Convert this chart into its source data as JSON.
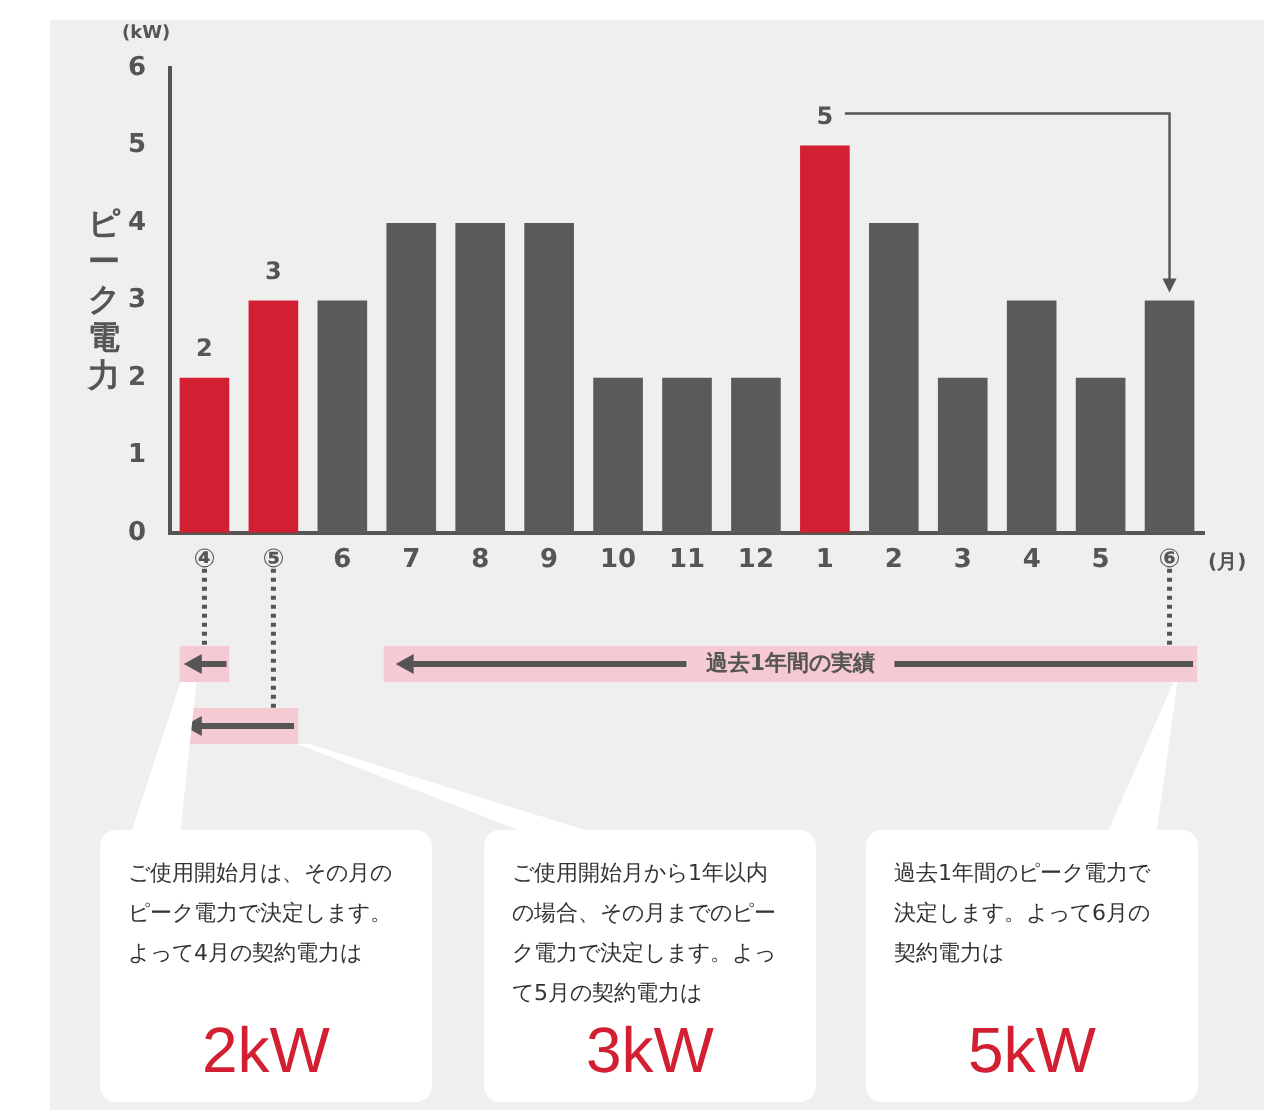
{
  "chart_data": {
    "type": "bar",
    "ylabel": "ピーク電力",
    "xlabel": "(月)",
    "categories": [
      "④",
      "⑤",
      "6",
      "7",
      "8",
      "9",
      "10",
      "11",
      "12",
      "1",
      "2",
      "3",
      "4",
      "5",
      "⑥"
    ],
    "values": [
      2,
      3,
      3,
      4,
      4,
      4,
      2,
      2,
      2,
      5,
      4,
      2,
      3,
      2,
      3
    ],
    "colors": [
      "#d21f32",
      "#d21f32",
      "#5a5a5a",
      "#5a5a5a",
      "#5a5a5a",
      "#5a5a5a",
      "#5a5a5a",
      "#5a5a5a",
      "#5a5a5a",
      "#d21f32",
      "#5a5a5a",
      "#5a5a5a",
      "#5a5a5a",
      "#5a5a5a",
      "#5a5a5a"
    ],
    "value_labels": [
      "2",
      "3",
      null,
      null,
      null,
      null,
      null,
      null,
      null,
      "5",
      null,
      null,
      null,
      null,
      null
    ],
    "ylim": [
      0,
      6
    ],
    "yticks": [
      0,
      1,
      2,
      3,
      4,
      5,
      6
    ],
    "grid": false,
    "legend": false,
    "annotations": [
      "(kW)",
      "過去1年間の実績",
      "ご使用開始月は、その月のピーク電力で決定します。よって4月の契約電力は",
      "2kW",
      "ご使用開始月から1年以内の場合、その月までのピーク電力で決定します。よって5月の契約電力は",
      "3kW",
      "過去1年間のピーク電力で決定します。よって6月の契約電力は",
      "5kW"
    ]
  }
}
